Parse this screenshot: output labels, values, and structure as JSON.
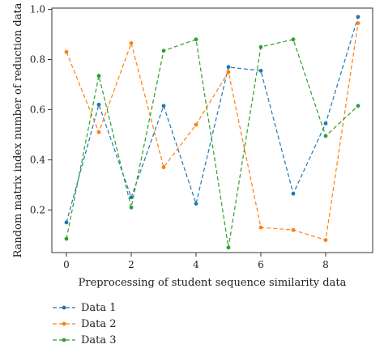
{
  "chart_data": {
    "type": "line",
    "title": "",
    "xlabel": "Preprocessing of student sequence similarity data",
    "ylabel": "Random matrix index number of reduction data",
    "x": [
      0,
      1,
      2,
      3,
      4,
      5,
      6,
      7,
      8,
      9
    ],
    "xlim": [
      -0.45,
      9.45
    ],
    "ylim": [
      0.03,
      1.005
    ],
    "xticks": [
      "0",
      "2",
      "4",
      "6",
      "8"
    ],
    "xtick_values": [
      0,
      2,
      4,
      6,
      8
    ],
    "yticks": [
      "0.2",
      "0.4",
      "0.6",
      "0.8",
      "1.0"
    ],
    "ytick_values": [
      0.2,
      0.4,
      0.6,
      0.8,
      1.0
    ],
    "grid": false,
    "legend_placement": "below-left",
    "series": [
      {
        "name": "Data 1",
        "color": "#1f77b4",
        "style": "dashed",
        "marker": "dot",
        "values": [
          0.15,
          0.62,
          0.25,
          0.615,
          0.225,
          0.77,
          0.755,
          0.265,
          0.545,
          0.97
        ]
      },
      {
        "name": "Data 2",
        "color": "#ff7f0e",
        "style": "dashed",
        "marker": "dot",
        "values": [
          0.83,
          0.51,
          0.865,
          0.37,
          0.54,
          0.75,
          0.13,
          0.12,
          0.08,
          0.945
        ]
      },
      {
        "name": "Data 3",
        "color": "#2ca02c",
        "style": "dashed",
        "marker": "dot",
        "values": [
          0.085,
          0.735,
          0.21,
          0.835,
          0.88,
          0.05,
          0.85,
          0.88,
          0.495,
          0.615
        ]
      }
    ]
  }
}
